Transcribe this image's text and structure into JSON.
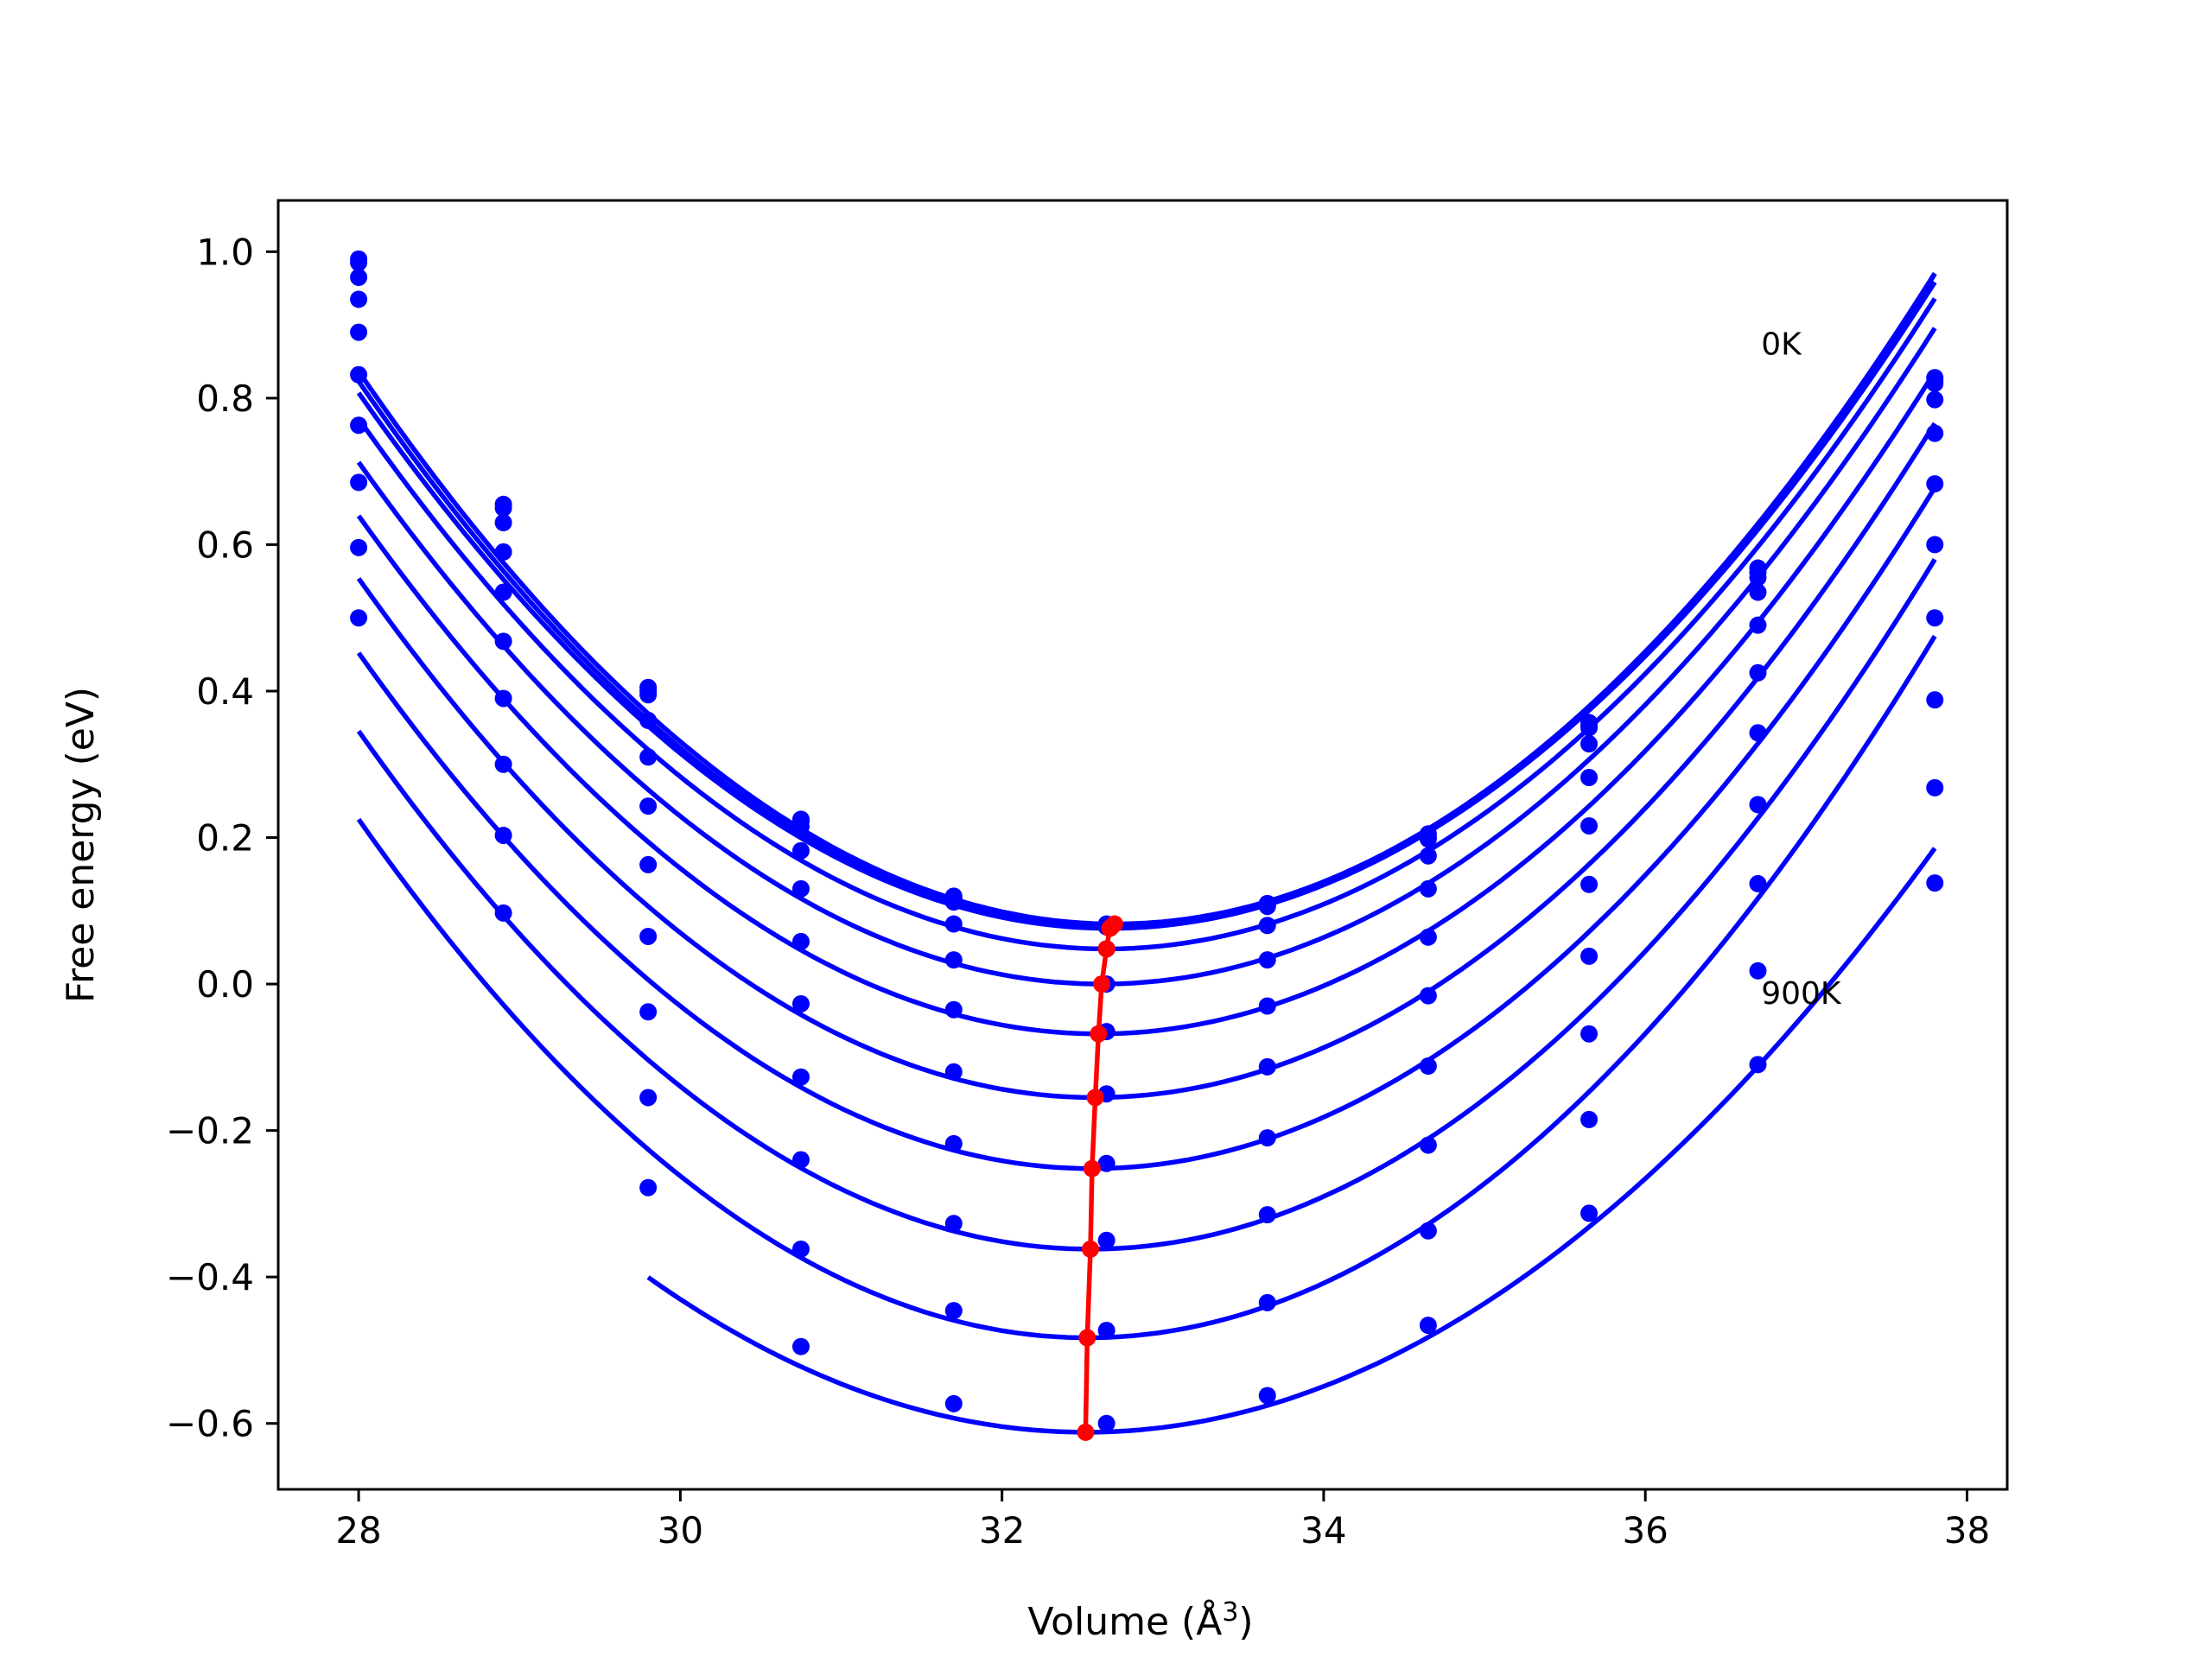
{
  "chart_data": {
    "type": "line",
    "xlabel": "Volume (Å",
    "xlabel_superscript": "3",
    "xlabel_suffix": ")",
    "ylabel": "Free energy (eV)",
    "xlim": [
      27.5,
      38.25
    ],
    "ylim": [
      -0.69,
      1.07
    ],
    "grid": false,
    "x_ticks": [
      28,
      30,
      32,
      34,
      36,
      38
    ],
    "x_tick_labels": [
      "28",
      "30",
      "32",
      "34",
      "36",
      "38"
    ],
    "y_ticks": [
      -0.6,
      -0.4,
      -0.2,
      0.0,
      0.2,
      0.4,
      0.6,
      0.8,
      1.0
    ],
    "y_tick_labels": [
      "−0.6",
      "−0.4",
      "−0.2",
      "0.0",
      "0.2",
      "0.4",
      "0.6",
      "0.8",
      "1.0"
    ],
    "annotations": [
      {
        "text": "0K",
        "x": 36.72,
        "y": 0.875
      },
      {
        "text": "900K",
        "x": 36.72,
        "y": -0.012
      }
    ],
    "x": [
      28.0,
      28.9,
      29.8,
      30.75,
      31.7,
      32.65,
      33.65,
      34.65,
      35.65,
      36.7,
      37.8
    ],
    "series": [
      {
        "values": [
          0.99,
          0.655,
          0.405,
          0.225,
          0.12,
          0.082,
          0.11,
          0.205,
          0.357,
          0.568,
          0.828
        ],
        "min": [
          32.7,
          0.082
        ]
      },
      {
        "values": [
          0.985,
          0.65,
          0.4,
          0.222,
          0.117,
          0.08,
          0.108,
          0.2,
          0.352,
          0.562,
          0.823
        ],
        "min": [
          32.68,
          0.078
        ]
      },
      {
        "values": [
          0.965,
          0.63,
          0.395,
          0.215,
          0.112,
          0.078,
          0.106,
          0.198,
          0.35,
          0.555,
          0.82
        ],
        "min": [
          32.67,
          0.076
        ]
      },
      {
        "values": [
          0.935,
          0.59,
          0.36,
          0.182,
          0.082,
          0.048,
          0.08,
          0.175,
          0.328,
          0.535,
          0.798
        ],
        "min": [
          32.65,
          0.048
        ]
      },
      {
        "values": [
          0.89,
          0.535,
          0.31,
          0.13,
          0.033,
          0.0,
          0.033,
          0.13,
          0.282,
          0.49,
          0.752
        ],
        "min": [
          32.62,
          0.0
        ]
      },
      {
        "values": [
          0.832,
          0.468,
          0.243,
          0.058,
          -0.035,
          -0.065,
          -0.03,
          0.064,
          0.216,
          0.425,
          0.683
        ],
        "min": [
          32.6,
          -0.068
        ]
      },
      {
        "values": [
          0.763,
          0.39,
          0.163,
          -0.027,
          -0.12,
          -0.15,
          -0.113,
          -0.016,
          0.136,
          0.343,
          0.6
        ],
        "min": [
          32.58,
          -0.155
        ]
      },
      {
        "values": [
          0.685,
          0.3,
          0.065,
          -0.127,
          -0.218,
          -0.245,
          -0.21,
          -0.112,
          0.038,
          0.245,
          0.5
        ],
        "min": [
          32.56,
          -0.252
        ]
      },
      {
        "values": [
          0.596,
          0.203,
          -0.038,
          -0.24,
          -0.327,
          -0.35,
          -0.315,
          -0.22,
          -0.068,
          0.137,
          0.388
        ],
        "min": [
          32.55,
          -0.362
        ]
      },
      {
        "values": [
          0.5,
          0.097,
          -0.155,
          -0.362,
          -0.446,
          -0.473,
          -0.435,
          -0.337,
          -0.185,
          0.018,
          0.268
        ],
        "min": [
          32.53,
          -0.483
        ]
      },
      {
        "values": [
          null,
          null,
          -0.278,
          -0.495,
          -0.573,
          -0.6,
          -0.562,
          -0.466,
          -0.313,
          -0.11,
          0.138
        ],
        "min": [
          32.52,
          -0.612
        ]
      }
    ],
    "minima_path": {
      "x": [
        32.52,
        32.53,
        32.55,
        32.56,
        32.58,
        32.6,
        32.62,
        32.65,
        32.67,
        32.68,
        32.7
      ],
      "y": [
        -0.612,
        -0.483,
        -0.362,
        -0.252,
        -0.155,
        -0.068,
        0.0,
        0.048,
        0.076,
        0.078,
        0.082
      ]
    },
    "colors": {
      "curves": "#0000ff",
      "minima": "#ff0000",
      "axes": "#000000",
      "background": "#ffffff"
    }
  }
}
